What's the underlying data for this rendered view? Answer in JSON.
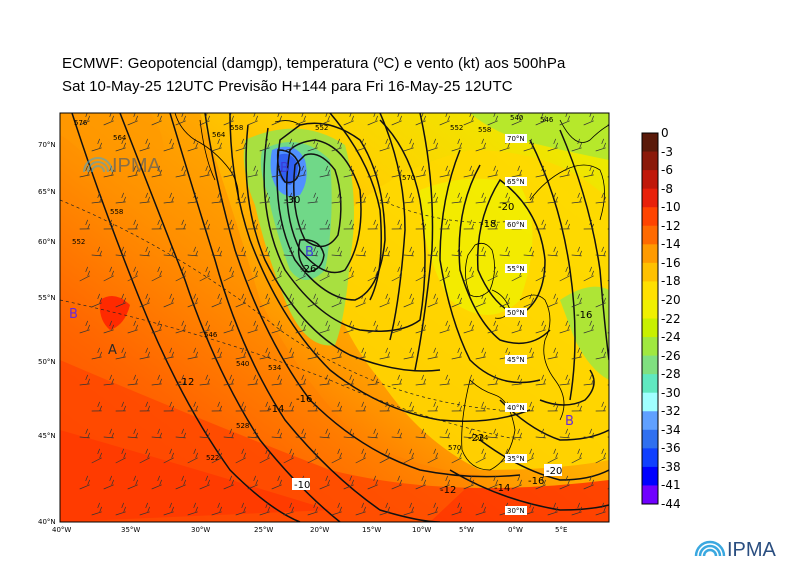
{
  "title_line1": "ECMWF:  Geopotencial (damgp), temperatura (ºC) e vento (kt) aos 500hPa",
  "title_line2": "Sat 10-May-25 12UTC Previsão H+144 para Fri 16-May-25 12UTC",
  "watermark": {
    "text": "IPMA",
    "name": "ipma-watermark-logo"
  },
  "logo": {
    "text": "IPMA",
    "name": "ipma-logo"
  },
  "lon_ticks": [
    "40°W",
    "35°W",
    "30°W",
    "25°W",
    "20°W",
    "15°W",
    "10°W",
    "5°W",
    "0°W",
    "5°E"
  ],
  "lat_ticks": [
    "70°N",
    "65°N",
    "60°N",
    "55°N",
    "50°N",
    "45°N",
    "40°N"
  ],
  "inner_lat_labels": [
    "55°N",
    "50°N",
    "45°N",
    "40°N",
    "35°N",
    "30°N",
    "70°N",
    "65°N",
    "60°N"
  ],
  "pressure_centers": [
    {
      "letter": "B",
      "color": "#6a2bd8",
      "name": "low-center-west"
    },
    {
      "letter": "A",
      "color": "#2a2a2a",
      "name": "high-center-west"
    },
    {
      "letter": "B",
      "color": "#3a3ad8",
      "name": "low-center-iceland"
    },
    {
      "letter": "B",
      "color": "#3a3ad8",
      "name": "low-center-south-iceland"
    },
    {
      "letter": "B",
      "color": "#6a2bd8",
      "name": "low-center-iberia"
    }
  ],
  "isotherm_labels": [
    "-30",
    "-26",
    "-18",
    "-20",
    "-12",
    "-14",
    "-16",
    "-10",
    "-12",
    "-14",
    "-16",
    "-20",
    "-16",
    "-22"
  ],
  "contour_labels": [
    "576",
    "564",
    "558",
    "552",
    "546",
    "540",
    "534",
    "528",
    "522",
    "552",
    "558",
    "564",
    "570",
    "570",
    "564",
    "546",
    "540",
    "552",
    "558"
  ],
  "colorbar": {
    "levels": [
      "0",
      "-3",
      "-6",
      "-8",
      "-10",
      "-12",
      "-14",
      "-16",
      "-18",
      "-20",
      "-22",
      "-24",
      "-26",
      "-28",
      "-30",
      "-32",
      "-34",
      "-36",
      "-38",
      "-41",
      "-44"
    ],
    "colors": [
      "#5a1a0a",
      "#8b1a0a",
      "#c0180a",
      "#e8200a",
      "#ff4400",
      "#ff6a00",
      "#ff9a00",
      "#ffc000",
      "#ffe000",
      "#f0f000",
      "#c8f000",
      "#a0e840",
      "#80e080",
      "#60e8c0",
      "#a0ffff",
      "#60a0ff",
      "#3070f0",
      "#1040ff",
      "#0000ff",
      "#7000ff",
      "#d000ff"
    ]
  }
}
